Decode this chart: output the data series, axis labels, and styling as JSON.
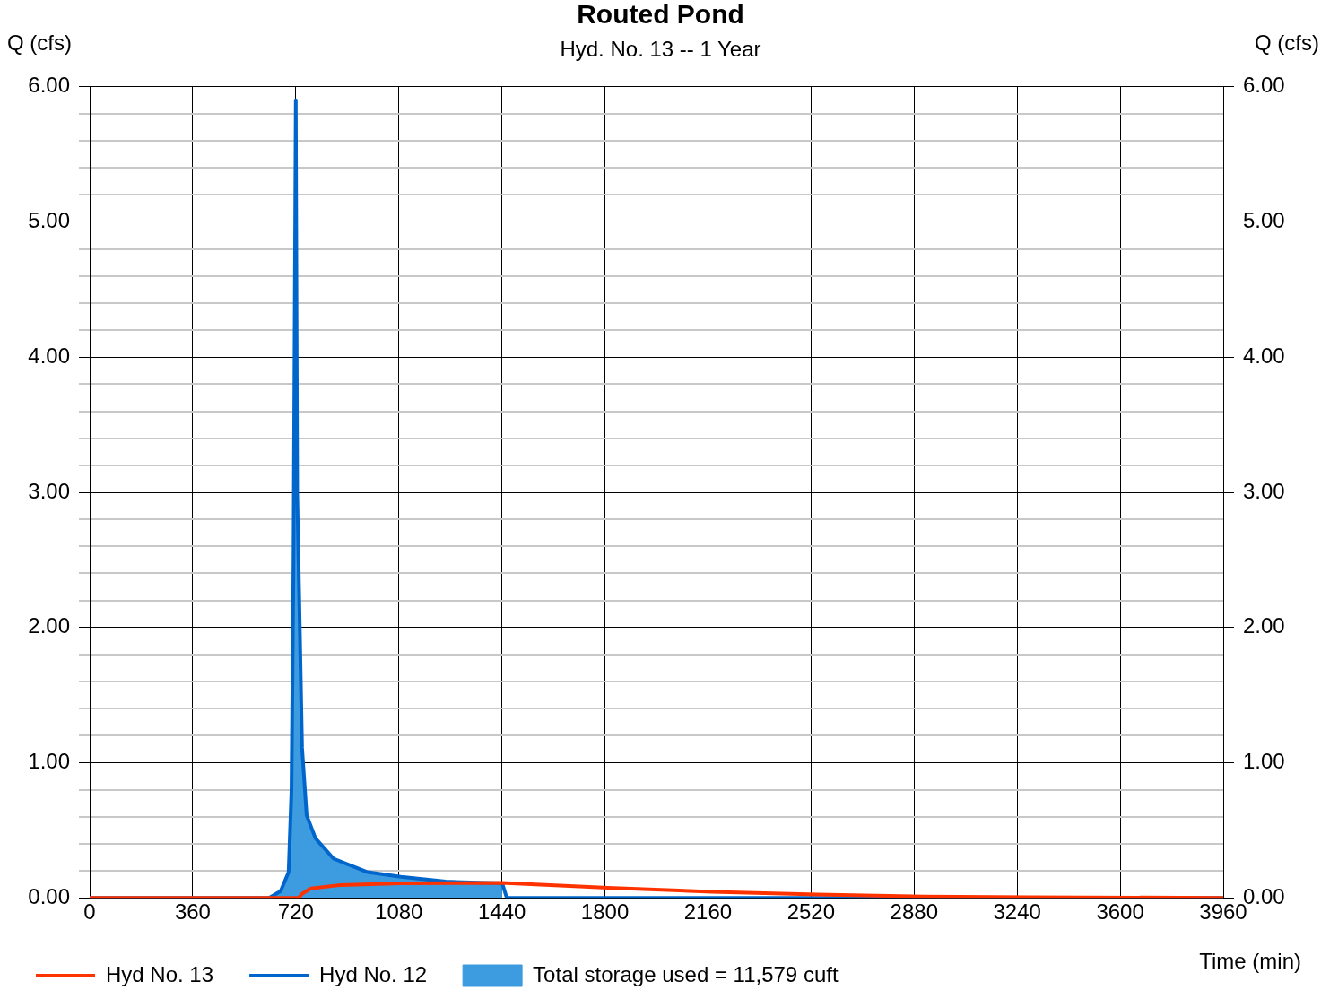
{
  "chart_data": {
    "type": "line",
    "title": "Routed Pond",
    "subtitle": "Hyd. No. 13 -- 1 Year",
    "xlabel": "Time (min)",
    "ylabel": "Q (cfs)",
    "y2label": "Q (cfs)",
    "xlim": [
      0,
      3960
    ],
    "xticks": [
      0,
      360,
      720,
      1080,
      1440,
      1800,
      2160,
      2520,
      2880,
      3240,
      3600,
      3960
    ],
    "ylim": [
      0,
      6
    ],
    "yticks": [
      {
        "value": 0,
        "label": "0.00"
      },
      {
        "value": 0.2,
        "label": null
      },
      {
        "value": 0.4,
        "label": null
      },
      {
        "value": 0.6,
        "label": null
      },
      {
        "value": 0.8,
        "label": null
      },
      {
        "value": 1,
        "label": "1.00"
      },
      {
        "value": 1.2,
        "label": null
      },
      {
        "value": 1.4,
        "label": null
      },
      {
        "value": 1.6,
        "label": null
      },
      {
        "value": 1.8,
        "label": null
      },
      {
        "value": 2,
        "label": "2.00"
      },
      {
        "value": 2.2,
        "label": null
      },
      {
        "value": 2.4,
        "label": null
      },
      {
        "value": 2.6,
        "label": null
      },
      {
        "value": 2.8,
        "label": null
      },
      {
        "value": 3,
        "label": "3.00"
      },
      {
        "value": 3.2,
        "label": null
      },
      {
        "value": 3.4,
        "label": null
      },
      {
        "value": 3.6,
        "label": null
      },
      {
        "value": 3.8,
        "label": null
      },
      {
        "value": 4,
        "label": "4.00"
      },
      {
        "value": 4.2,
        "label": null
      },
      {
        "value": 4.4,
        "label": null
      },
      {
        "value": 4.6,
        "label": null
      },
      {
        "value": 4.8,
        "label": null
      },
      {
        "value": 5,
        "label": "5.00"
      },
      {
        "value": 5.2,
        "label": null
      },
      {
        "value": 5.4,
        "label": null
      },
      {
        "value": 5.6,
        "label": null
      },
      {
        "value": 5.8,
        "label": null
      },
      {
        "value": 6,
        "label": "6.00"
      }
    ],
    "y2lim": [
      0,
      6
    ],
    "y2ticks": [
      {
        "value": 0,
        "label": "0.00"
      },
      {
        "value": 1,
        "label": "1.00"
      },
      {
        "value": 2,
        "label": "2.00"
      },
      {
        "value": 3,
        "label": "3.00"
      },
      {
        "value": 4,
        "label": "4.00"
      },
      {
        "value": 5,
        "label": "5.00"
      },
      {
        "value": 6,
        "label": "6.00"
      }
    ],
    "grid": true,
    "legend": "bottom",
    "marker": "none",
    "line_style": "solid",
    "series": [
      {
        "name": "Hyd No. 13",
        "color": "#ff3300",
        "x": [
          0,
          730,
          742,
          773,
          877,
          1087,
          1440,
          1811,
          2174,
          2541,
          2913,
          3283,
          3960
        ],
        "values": [
          0,
          0,
          0.03,
          0.07,
          0.095,
          0.108,
          0.11,
          0.075,
          0.045,
          0.025,
          0.01,
          0.005,
          0
        ]
      },
      {
        "name": "Hyd No. 12",
        "color": "#0066cc",
        "x": [
          0,
          627,
          667,
          695,
          705,
          712,
          720,
          725,
          742,
          758,
          789,
          852,
          971,
          1087,
          1244,
          1441,
          1457,
          3960
        ],
        "values": [
          0,
          0,
          0.05,
          0.19,
          0.8,
          2.5,
          5.9,
          3,
          1.11,
          0.61,
          0.44,
          0.29,
          0.19,
          0.155,
          0.12,
          0.108,
          0,
          0
        ]
      },
      {
        "name": "Total storage used = 11,579 cuft",
        "type": "area",
        "color": "#3d9be0",
        "x": [
          627,
          667,
          695,
          705,
          712,
          720,
          725,
          742,
          758,
          789,
          852,
          971,
          1087,
          1244,
          1441
        ],
        "values": [
          0,
          0.05,
          0.19,
          0.8,
          2.5,
          5.9,
          3,
          1.11,
          0.61,
          0.44,
          0.29,
          0.19,
          0.155,
          0.12,
          0.108
        ]
      }
    ]
  }
}
